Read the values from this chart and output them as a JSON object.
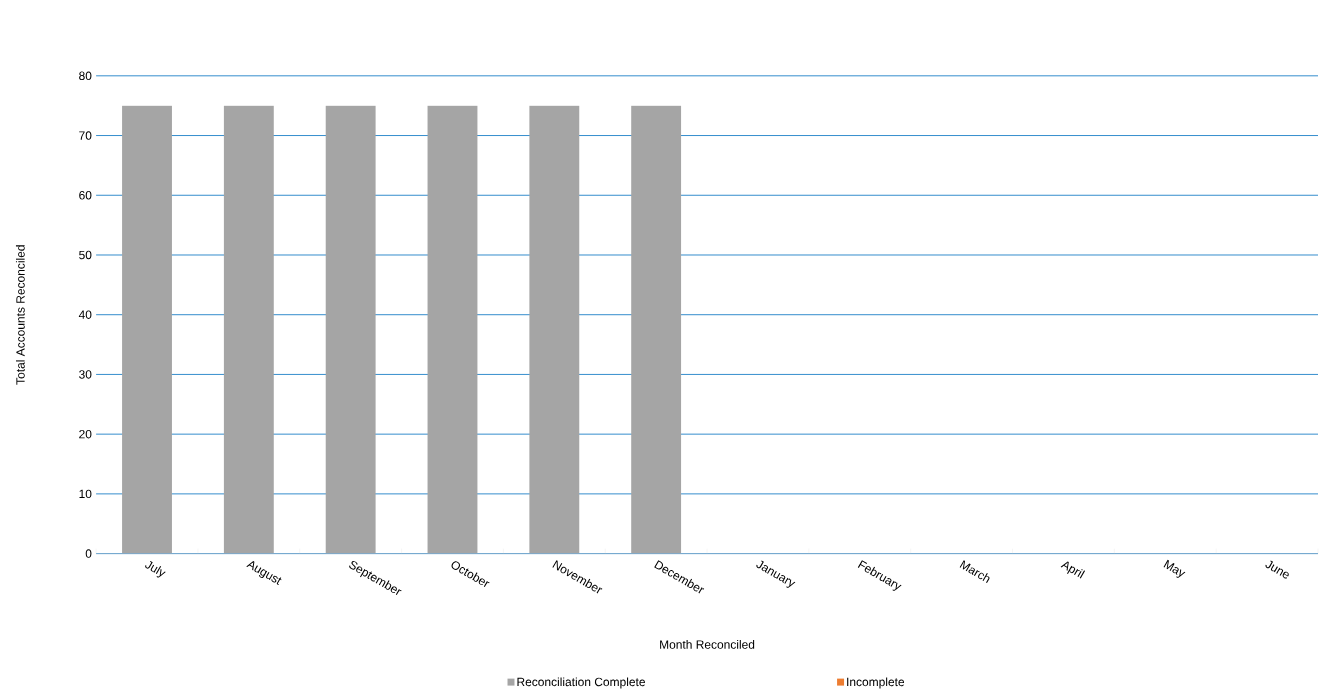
{
  "chart_data": {
    "type": "bar",
    "xlabel": "Month Reconciled",
    "ylabel": "Total Accounts Reconciled",
    "categories": [
      "July",
      "August",
      "September",
      "October",
      "November",
      "December",
      "January",
      "February",
      "March",
      "April",
      "May",
      "June"
    ],
    "series": [
      {
        "name": "Reconciliation Complete",
        "color": "#a5a5a5",
        "values": [
          75,
          75,
          75,
          75,
          75,
          75,
          null,
          null,
          null,
          null,
          null,
          null
        ]
      },
      {
        "name": "Incomplete",
        "color": "#ed7d31",
        "values": [
          0,
          0,
          0,
          0,
          0,
          0,
          null,
          null,
          null,
          null,
          null,
          null
        ]
      }
    ],
    "stacked": true,
    "ylim": [
      0,
      80
    ],
    "yticks": [
      0,
      10,
      20,
      30,
      40,
      50,
      60,
      70,
      80
    ],
    "grid": "y",
    "legend": "bottom"
  }
}
